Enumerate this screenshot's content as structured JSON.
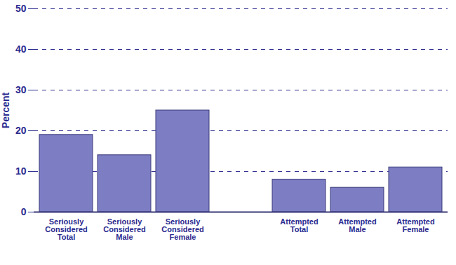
{
  "chart_data": {
    "type": "bar",
    "y_label": "Percent",
    "categories": [
      "Seriously Considered Total",
      "Seriously Considered Male",
      "Seriously Considered Female",
      null,
      "Attempted Total",
      "Attempted Male",
      "Attempted Female"
    ],
    "values": [
      19,
      14,
      25,
      null,
      8,
      6,
      11
    ],
    "color": "#7d7dc4",
    "ylim": [
      0,
      50
    ],
    "yticks": [
      0,
      10,
      20,
      30,
      40,
      50
    ],
    "grid": true
  }
}
